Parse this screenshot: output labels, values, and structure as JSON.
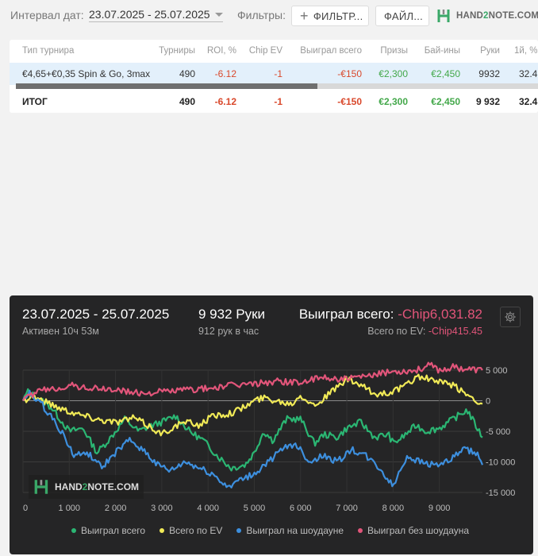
{
  "filterbar": {
    "interval_label": "Интервал дат:",
    "date_range": "23.07.2025 - 25.07.2025",
    "filters_label": "Фильтры:",
    "filter_button": "ФИЛЬТР...",
    "file_button": "ФАЙЛ...",
    "logo_prefix": "HAND",
    "logo_two": "2",
    "logo_suffix": "NOTE.COM"
  },
  "table": {
    "columns": [
      "Тип турнира",
      "Турниры",
      "ROI, %",
      "Chip EV",
      "Выиграл всего",
      "Призы",
      "Бай-ины",
      "Руки",
      "1й, %"
    ],
    "rows": [
      [
        "€4,65+€0,35 Spin & Go, 3max",
        "490",
        "-6.12",
        "-1",
        "-€150",
        "€2,300",
        "€2,450",
        "9932",
        "32.4"
      ]
    ],
    "total": [
      "ИТОГ",
      "490",
      "-6.12",
      "-1",
      "-€150",
      "€2,300",
      "€2,450",
      "9 932",
      "32.4"
    ]
  },
  "panel": {
    "date": "23.07.2025 - 25.07.2025",
    "active": "Активен 10ч 53м",
    "hands": "9 932 Руки",
    "hands_rate": "912 рук в час",
    "won_label": "Выиграл всего:",
    "won_value": "-Chip6,031.82",
    "ev_label": "Всего по EV:",
    "ev_value": "-Chip415.45",
    "settings_icon": "gear-icon",
    "watermark_prefix": "HAND",
    "watermark_two": "2",
    "watermark_suffix": "NOTE.COM"
  },
  "chart_data": {
    "type": "line",
    "x_ticks": [
      "0",
      "1 000",
      "2 000",
      "3 000",
      "4 000",
      "5 000",
      "6 000",
      "7 000",
      "8 000",
      "9 000"
    ],
    "y_ticks": [
      "5 000",
      "0",
      "-5 000",
      "-10 000",
      "-15 000"
    ],
    "xlim": [
      0,
      9932
    ],
    "ylim": [
      -15000,
      5000
    ],
    "y_axis_position": "right",
    "grid": true,
    "legend": "bottom",
    "series": [
      {
        "name": "Выиграл всего",
        "color": "#2bb673",
        "x": [
          0,
          100,
          300,
          600,
          800,
          1000,
          1300,
          1600,
          1900,
          2200,
          2500,
          2800,
          3000,
          3300,
          3600,
          3900,
          4200,
          4500,
          4800,
          5000,
          5200,
          5400,
          5700,
          6000,
          6300,
          6500,
          6800,
          7000,
          7300,
          7600,
          7900,
          8000,
          8200,
          8500,
          8700,
          9000,
          9300,
          9600,
          9932
        ],
        "y": [
          0,
          1500,
          500,
          -1000,
          -3000,
          -5000,
          -4500,
          -8500,
          -6000,
          -3000,
          -5000,
          -4000,
          -3500,
          -2500,
          -5000,
          -6500,
          -9000,
          -11000,
          -10500,
          -8500,
          -5000,
          -6500,
          -3000,
          -3000,
          -7000,
          -5500,
          -6000,
          -4500,
          -3500,
          -6000,
          -5500,
          -7000,
          -6000,
          -4000,
          -5000,
          -4500,
          -3000,
          -1500,
          -6000
        ]
      },
      {
        "name": "Всего по EV",
        "color": "#f1ea57",
        "x": [
          0,
          200,
          500,
          800,
          1200,
          1600,
          2000,
          2400,
          2800,
          3000,
          3200,
          3500,
          3800,
          4100,
          4500,
          4800,
          5000,
          5200,
          5500,
          5800,
          6000,
          6300,
          6600,
          7000,
          7300,
          7600,
          8000,
          8300,
          8500,
          8800,
          9000,
          9300,
          9600,
          9932
        ],
        "y": [
          0,
          800,
          -200,
          -1200,
          -2200,
          -3000,
          -3500,
          -2800,
          -4500,
          -5500,
          -4500,
          -3500,
          -4000,
          -2500,
          -2000,
          -1000,
          0,
          500,
          0,
          -500,
          1000,
          -800,
          1000,
          3500,
          2500,
          1000,
          1500,
          2500,
          4000,
          3500,
          3000,
          2500,
          1000,
          -500
        ]
      },
      {
        "name": "Выиграл на шоудауне",
        "color": "#3d8fde",
        "x": [
          0,
          150,
          400,
          700,
          900,
          1100,
          1400,
          1700,
          2000,
          2300,
          2600,
          2900,
          3200,
          3500,
          3800,
          4100,
          4400,
          4700,
          5000,
          5300,
          5600,
          5900,
          6200,
          6500,
          6800,
          7100,
          7400,
          7700,
          8000,
          8300,
          8600,
          8900,
          9200,
          9500,
          9800,
          9932
        ],
        "y": [
          0,
          1200,
          -500,
          -3500,
          -6000,
          -9000,
          -8500,
          -11000,
          -8500,
          -6500,
          -8000,
          -10500,
          -11500,
          -10000,
          -11000,
          -12000,
          -14000,
          -13000,
          -12000,
          -10000,
          -8000,
          -7000,
          -10000,
          -9000,
          -10000,
          -8000,
          -9000,
          -11000,
          -14000,
          -9000,
          -10000,
          -10500,
          -10000,
          -8000,
          -8500,
          -10500
        ]
      },
      {
        "name": "Выиграл без шоудауна",
        "color": "#e2557a",
        "x": [
          0,
          300,
          700,
          1000,
          1500,
          2000,
          2500,
          3000,
          3500,
          4000,
          4500,
          5000,
          5500,
          6000,
          6500,
          7000,
          7500,
          8000,
          8500,
          8800,
          9000,
          9300,
          9600,
          9932
        ],
        "y": [
          0,
          1500,
          2000,
          2500,
          2000,
          1800,
          1200,
          1500,
          1800,
          2000,
          2500,
          2800,
          3200,
          3000,
          3800,
          3500,
          4000,
          4800,
          5000,
          5800,
          5000,
          5500,
          5200,
          5000
        ]
      }
    ]
  }
}
